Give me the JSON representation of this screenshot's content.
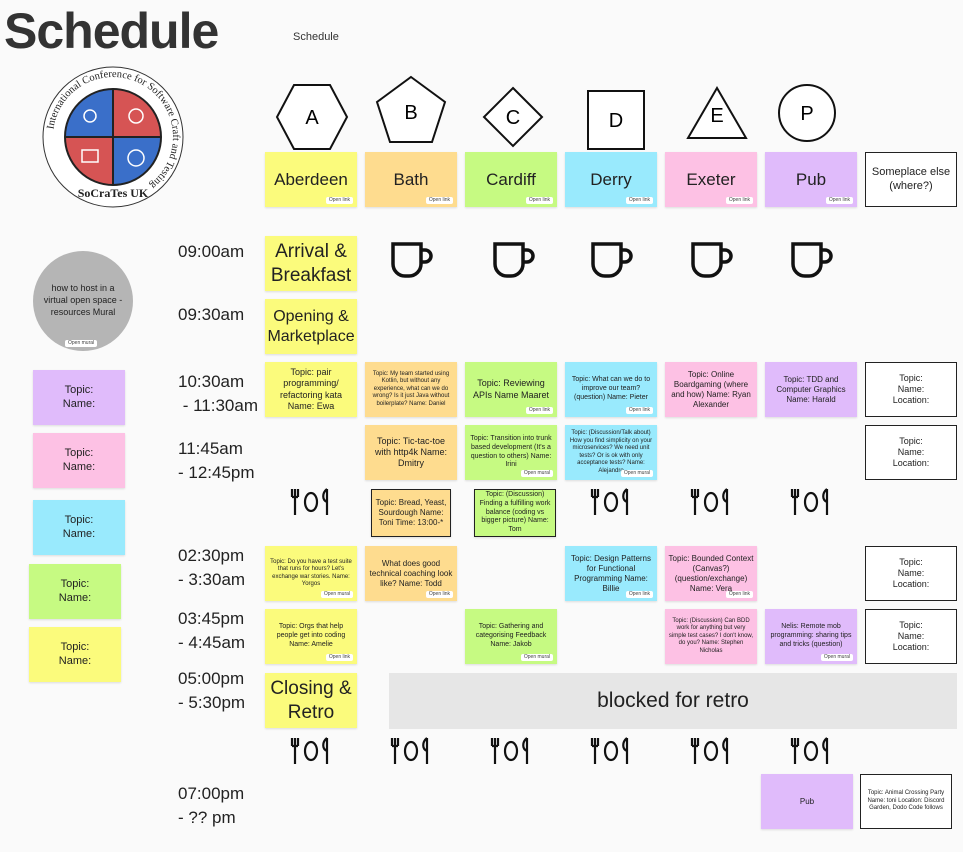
{
  "page": {
    "title": "Schedule",
    "subtitle": "Schedule"
  },
  "logo": {
    "ring_text": "International Conference for Software Craft and Testing",
    "bottom_text": "SoCraTes UK"
  },
  "open_link": "Open link",
  "open_mural": "Open mural",
  "rooms": [
    {
      "letter": "A",
      "name": "Aberdeen",
      "color": "#fbfb7c"
    },
    {
      "letter": "B",
      "name": "Bath",
      "color": "#fedc8f"
    },
    {
      "letter": "C",
      "name": "Cardiff",
      "color": "#c6fa82"
    },
    {
      "letter": "D",
      "name": "Derry",
      "color": "#99eafd"
    },
    {
      "letter": "E",
      "name": "Exeter",
      "color": "#fdc1e4"
    },
    {
      "letter": "P",
      "name": "Pub",
      "color": "#e0bbfb"
    }
  ],
  "someplace": "Someplace else (where?)",
  "times": {
    "t1": "09:00am",
    "t2": "09:30am",
    "t3a": "10:30am",
    "t3b": " - 11:30am",
    "t4a": "11:45am",
    "t4b": "- 12:45pm",
    "t5a": "02:30pm",
    "t5b": "- 3:30am",
    "t6a": "03:45pm",
    "t6b": "- 4:45am",
    "t7a": "05:00pm",
    "t7b": "- 5:30pm",
    "t8a": "07:00pm",
    "t8b": "- ?? pm"
  },
  "fixed": {
    "arrival": "Arrival & Breakfast",
    "opening": "Opening & Marketplace",
    "closing": "Closing & Retro",
    "blocked": "blocked for retro",
    "pub_evening": "Pub"
  },
  "resources": "how to host in a virtual open space - resources Mural",
  "templates": {
    "topic": "Topic:",
    "name": "Name:",
    "location": "Location:"
  },
  "sessions": {
    "a1": "Topic: pair programming/ refactoring kata Name: Ewa",
    "b1": "Topic: My team started using Kotlin, but without any experience, what can we do wrong? Is it just Java without boilerplate? Name: Daniel",
    "c1": "Topic: Reviewing APIs Name Maaret",
    "d1": "Topic: What can we do to improve our team? (question) Name: Pieter",
    "e1": "Topic: Online Boardgaming (where and how) Name: Ryan Alexander",
    "p1": "Topic: TDD and Computer Graphics Name: Harald",
    "b2": "Topic: Tic-tac-toe with http4k Name: Dmitry",
    "c2": "Topic: Transition into trunk based development (It's a question to others) Name: Irini",
    "d2": "Topic: (Discussion/Talk about) How you find simplicity on your microservices? We need unit tests? Or is ok with only acceptance tests? Name: Alejandro",
    "lunch_b": "Topic: Bread, Yeast, Sourdough Name: Toni Time: 13:00-*",
    "lunch_c": "Topic: (Discussion) Finding a fulfilling work balance (coding vs bigger picture) Name: Tom",
    "a3": "Topic: Do you have a test suite that runs for hours? Let's exchange war stories. Name: Yorgos",
    "b3": "What does good technical coaching look like? Name: Todd",
    "d3": "Topic: Design Patterns for Functional Programming Name: Billie",
    "e3": "Topic: Bounded Context (Canvas?) (question/exchange) Name: Vera",
    "a4": "Topic: Orgs that help people get into coding Name: Amelie",
    "c4": "Topic: Gathering and categorising Feedback Name: Jakob",
    "e4": "Topic: (Discussion) Can BDD work for anything but very simple test cases? I don't know, do you? Name: Stephen Nicholas",
    "p4": "Nelis: Remote mob programming: sharing tips and tricks (question)",
    "evening": "Topic: Animal Crossing Party Name: toni Location: Discord Garden, Dodo Code follows"
  }
}
